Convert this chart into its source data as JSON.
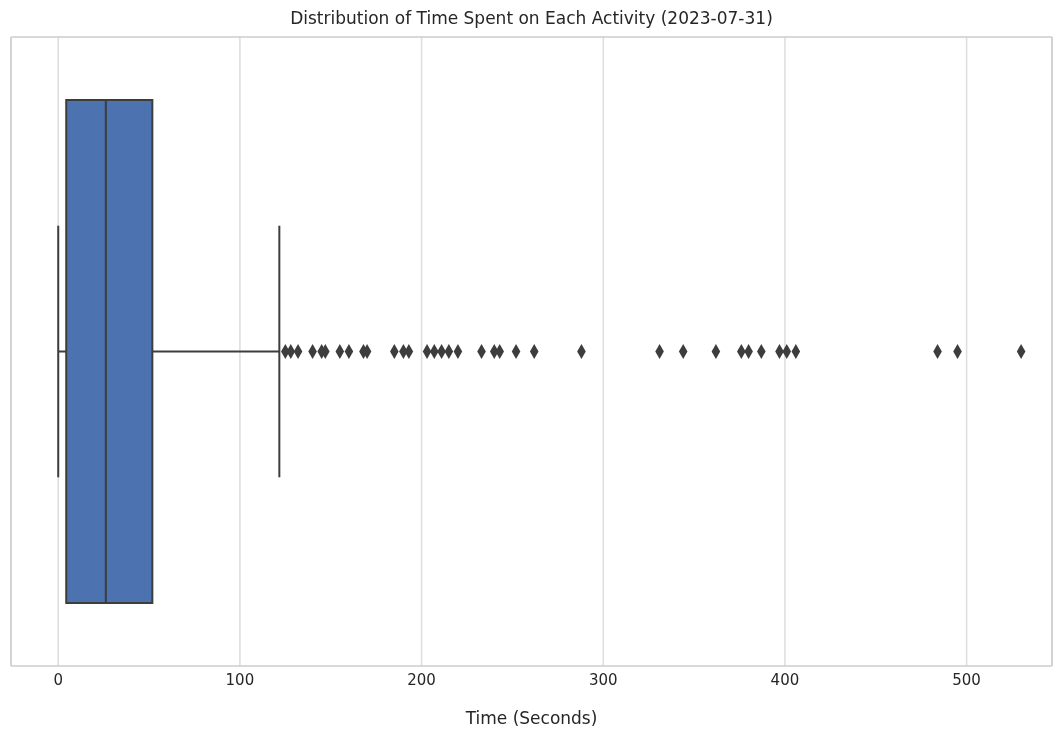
{
  "chart_data": {
    "type": "box",
    "orientation": "horizontal",
    "title": "Distribution of Time Spent on Each Activity (2023-07-31)",
    "xlabel": "Time (Seconds)",
    "categories": [
      null
    ],
    "color": "#4c72b0",
    "xlim": [
      -26,
      547
    ],
    "xticks": [
      0,
      100,
      200,
      300,
      400,
      500
    ],
    "grid": "x",
    "tick_labels": "x",
    "marker": "diamond",
    "boxes": [
      {
        "low": 0,
        "q1": 4.4,
        "median": 26.2,
        "q3": 51.8,
        "high": 121.7,
        "outliers": [
          125,
          128,
          132,
          140,
          145,
          147,
          155,
          160,
          168,
          170,
          185,
          190,
          193,
          203,
          207,
          211,
          215,
          220,
          233,
          240,
          243,
          252,
          262,
          288,
          331,
          344,
          362,
          376,
          380,
          387,
          397,
          401,
          406,
          484,
          495,
          530
        ]
      }
    ]
  }
}
